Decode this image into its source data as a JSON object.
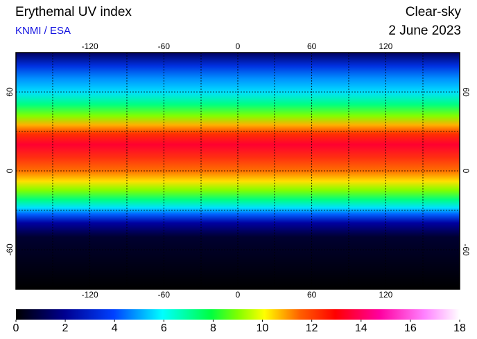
{
  "header": {
    "title": "Erythemal UV index",
    "source": "KNMI / ESA",
    "mode": "Clear-sky",
    "date": "2 June 2023"
  },
  "map": {
    "lon_lim": [
      -180,
      180
    ],
    "lat_lim": [
      -90,
      90
    ],
    "lon_ticks": [
      -120,
      -60,
      0,
      60,
      120
    ],
    "lat_ticks": [
      -60,
      0,
      60
    ]
  },
  "colorbar": {
    "ticks": [
      0,
      2,
      4,
      6,
      8,
      10,
      12,
      14,
      16,
      18
    ]
  }
}
